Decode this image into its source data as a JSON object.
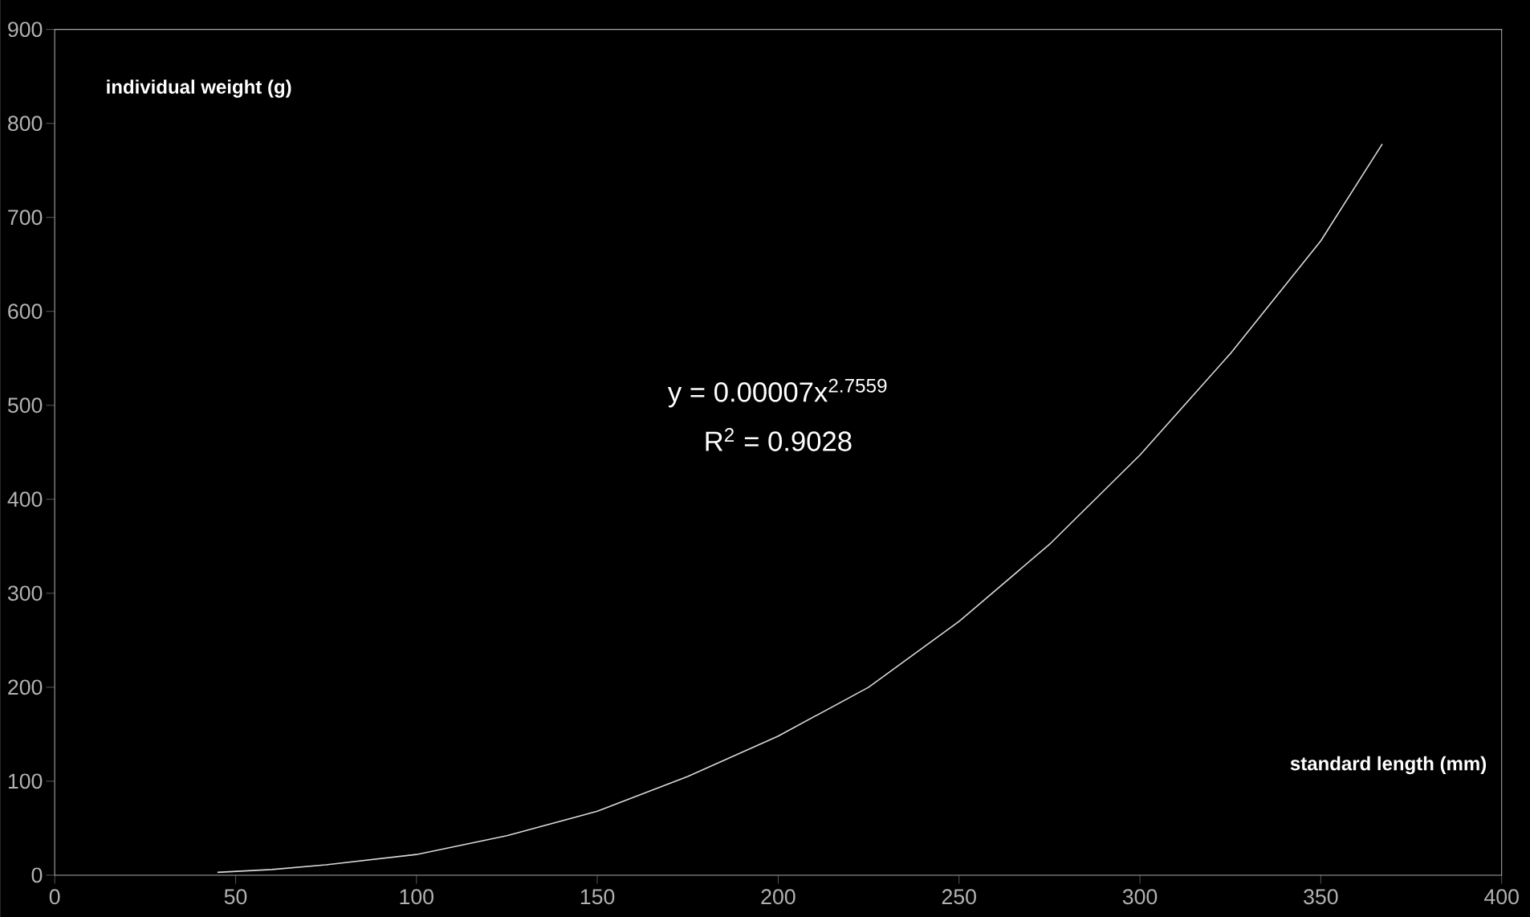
{
  "chart_data": {
    "type": "line",
    "xlabel": "standard length (mm)",
    "ylabel": "individual weight (g)",
    "x": [
      45,
      60,
      75,
      100,
      125,
      150,
      175,
      200,
      225,
      250,
      275,
      300,
      325,
      350,
      367
    ],
    "values": [
      3,
      6,
      11,
      22,
      42,
      68,
      105,
      148,
      200,
      270,
      352,
      447,
      555,
      675,
      778
    ],
    "color": "#d9d9d9",
    "line_style": "solid",
    "marker": "none",
    "xlim": [
      0,
      400
    ],
    "ylim": [
      0,
      900
    ],
    "xticks": [
      0,
      50,
      100,
      150,
      200,
      250,
      300,
      350,
      400
    ],
    "yticks": [
      0,
      100,
      200,
      300,
      400,
      500,
      600,
      700,
      800,
      900
    ],
    "annotations": [
      "y = 0.00007x$^{2.7559}$",
      "R$^{2}$ = 0.9028"
    ]
  }
}
